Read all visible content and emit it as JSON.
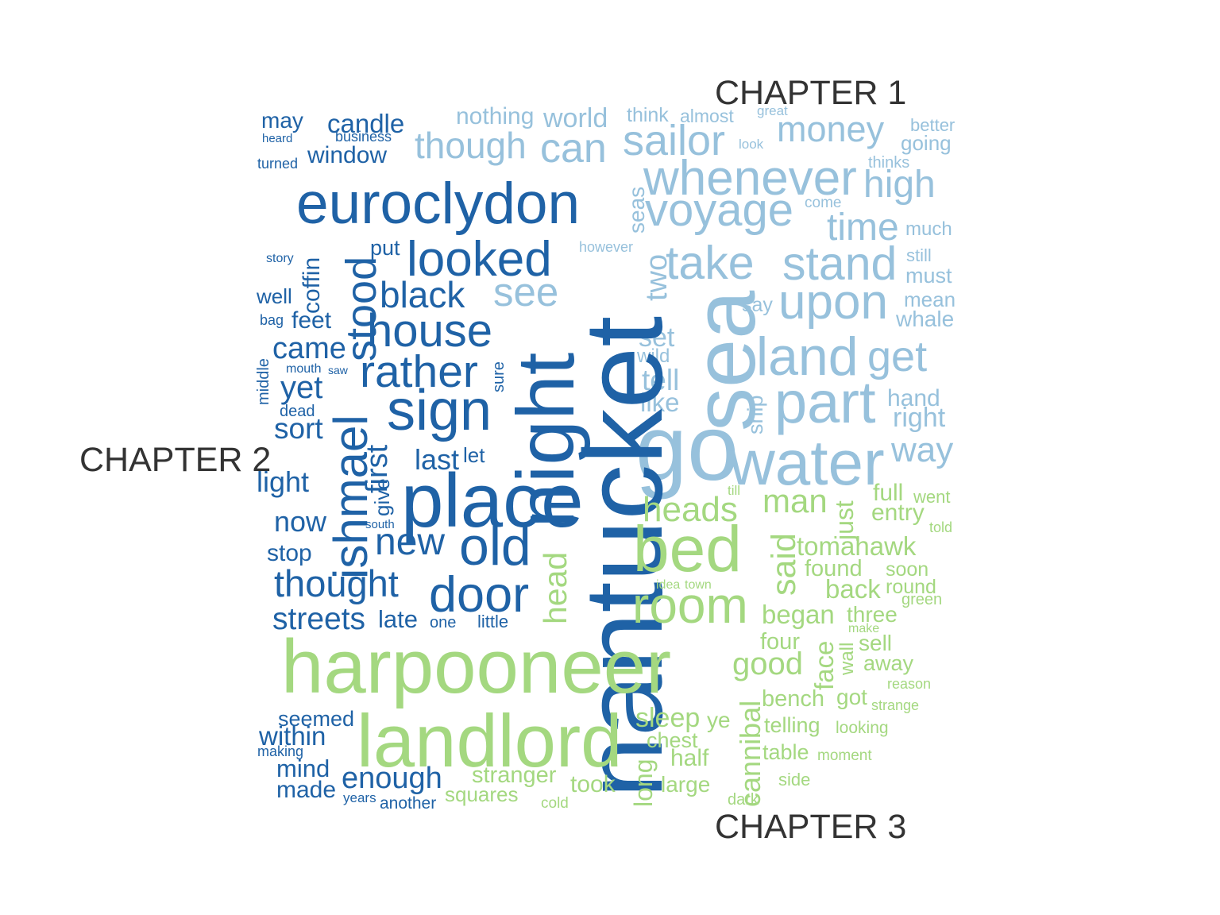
{
  "colors": {
    "chapter1": "#97c1dc",
    "chapter2": "#1f62a6",
    "chapter3": "#a4d880",
    "label": "#333333"
  },
  "chart_data": {
    "type": "wordcloud",
    "groups": [
      {
        "name": "CHAPTER 1",
        "color_key": "chapter1"
      },
      {
        "name": "CHAPTER 2",
        "color_key": "chapter2"
      },
      {
        "name": "CHAPTER 3",
        "color_key": "chapter3"
      }
    ],
    "words": [
      {
        "text": "nothing",
        "group": 0
      },
      {
        "text": "world",
        "group": 0
      },
      {
        "text": "think",
        "group": 0
      },
      {
        "text": "almost",
        "group": 0
      },
      {
        "text": "great",
        "group": 0
      },
      {
        "text": "though",
        "group": 0
      },
      {
        "text": "can",
        "group": 0
      },
      {
        "text": "sailor",
        "group": 0
      },
      {
        "text": "look",
        "group": 0
      },
      {
        "text": "money",
        "group": 0
      },
      {
        "text": "better",
        "group": 0
      },
      {
        "text": "going",
        "group": 0
      },
      {
        "text": "thinks",
        "group": 0
      },
      {
        "text": "whenever",
        "group": 0
      },
      {
        "text": "voyage",
        "group": 0
      },
      {
        "text": "high",
        "group": 0
      },
      {
        "text": "seas",
        "group": 0
      },
      {
        "text": "come",
        "group": 0
      },
      {
        "text": "time",
        "group": 0
      },
      {
        "text": "much",
        "group": 0
      },
      {
        "text": "however",
        "group": 0
      },
      {
        "text": "take",
        "group": 0
      },
      {
        "text": "stand",
        "group": 0
      },
      {
        "text": "still",
        "group": 0
      },
      {
        "text": "must",
        "group": 0
      },
      {
        "text": "two",
        "group": 0
      },
      {
        "text": "see",
        "group": 0
      },
      {
        "text": "sea",
        "group": 0
      },
      {
        "text": "say",
        "group": 0
      },
      {
        "text": "upon",
        "group": 0
      },
      {
        "text": "mean",
        "group": 0
      },
      {
        "text": "whale",
        "group": 0
      },
      {
        "text": "set",
        "group": 0
      },
      {
        "text": "wild",
        "group": 0
      },
      {
        "text": "land",
        "group": 0
      },
      {
        "text": "get",
        "group": 0
      },
      {
        "text": "tell",
        "group": 0
      },
      {
        "text": "like",
        "group": 0
      },
      {
        "text": "ship",
        "group": 0
      },
      {
        "text": "part",
        "group": 0
      },
      {
        "text": "hand",
        "group": 0
      },
      {
        "text": "right",
        "group": 0
      },
      {
        "text": "go",
        "group": 0
      },
      {
        "text": "water",
        "group": 0
      },
      {
        "text": "way",
        "group": 0
      },
      {
        "text": "may",
        "group": 1
      },
      {
        "text": "candle",
        "group": 1
      },
      {
        "text": "heard",
        "group": 1
      },
      {
        "text": "business",
        "group": 1
      },
      {
        "text": "window",
        "group": 1
      },
      {
        "text": "turned",
        "group": 1
      },
      {
        "text": "euroclydon",
        "group": 1
      },
      {
        "text": "coffin",
        "group": 1
      },
      {
        "text": "story",
        "group": 1
      },
      {
        "text": "put",
        "group": 1
      },
      {
        "text": "looked",
        "group": 1
      },
      {
        "text": "stood",
        "group": 1
      },
      {
        "text": "well",
        "group": 1
      },
      {
        "text": "black",
        "group": 1
      },
      {
        "text": "bag",
        "group": 1
      },
      {
        "text": "feet",
        "group": 1
      },
      {
        "text": "house",
        "group": 1
      },
      {
        "text": "came",
        "group": 1
      },
      {
        "text": "middle",
        "group": 1
      },
      {
        "text": "mouth",
        "group": 1
      },
      {
        "text": "saw",
        "group": 1
      },
      {
        "text": "rather",
        "group": 1
      },
      {
        "text": "sure",
        "group": 1
      },
      {
        "text": "yet",
        "group": 1
      },
      {
        "text": "night",
        "group": 1
      },
      {
        "text": "nantucket",
        "group": 1
      },
      {
        "text": "dead",
        "group": 1
      },
      {
        "text": "ishmael",
        "group": 1
      },
      {
        "text": "sign",
        "group": 1
      },
      {
        "text": "sort",
        "group": 1
      },
      {
        "text": "first",
        "group": 1
      },
      {
        "text": "last",
        "group": 1
      },
      {
        "text": "let",
        "group": 1
      },
      {
        "text": "light",
        "group": 1
      },
      {
        "text": "give",
        "group": 1
      },
      {
        "text": "place",
        "group": 1
      },
      {
        "text": "now",
        "group": 1
      },
      {
        "text": "south",
        "group": 1
      },
      {
        "text": "new",
        "group": 1
      },
      {
        "text": "old",
        "group": 1
      },
      {
        "text": "stop",
        "group": 1
      },
      {
        "text": "thought",
        "group": 1
      },
      {
        "text": "door",
        "group": 1
      },
      {
        "text": "streets",
        "group": 1
      },
      {
        "text": "late",
        "group": 1
      },
      {
        "text": "one",
        "group": 1
      },
      {
        "text": "little",
        "group": 1
      },
      {
        "text": "seemed",
        "group": 1
      },
      {
        "text": "within",
        "group": 1
      },
      {
        "text": "making",
        "group": 1
      },
      {
        "text": "mind",
        "group": 1
      },
      {
        "text": "enough",
        "group": 1
      },
      {
        "text": "made",
        "group": 1
      },
      {
        "text": "years",
        "group": 1
      },
      {
        "text": "another",
        "group": 1
      },
      {
        "text": "till",
        "group": 2
      },
      {
        "text": "full",
        "group": 2
      },
      {
        "text": "went",
        "group": 2
      },
      {
        "text": "heads",
        "group": 2
      },
      {
        "text": "man",
        "group": 2
      },
      {
        "text": "just",
        "group": 2
      },
      {
        "text": "entry",
        "group": 2
      },
      {
        "text": "told",
        "group": 2
      },
      {
        "text": "bed",
        "group": 2
      },
      {
        "text": "said",
        "group": 2
      },
      {
        "text": "tomahawk",
        "group": 2
      },
      {
        "text": "head",
        "group": 2
      },
      {
        "text": "found",
        "group": 2
      },
      {
        "text": "soon",
        "group": 2
      },
      {
        "text": "idea",
        "group": 2
      },
      {
        "text": "town",
        "group": 2
      },
      {
        "text": "back",
        "group": 2
      },
      {
        "text": "round",
        "group": 2
      },
      {
        "text": "green",
        "group": 2
      },
      {
        "text": "room",
        "group": 2
      },
      {
        "text": "began",
        "group": 2
      },
      {
        "text": "three",
        "group": 2
      },
      {
        "text": "make",
        "group": 2
      },
      {
        "text": "four",
        "group": 2
      },
      {
        "text": "wall",
        "group": 2
      },
      {
        "text": "sell",
        "group": 2
      },
      {
        "text": "harpooneer",
        "group": 2
      },
      {
        "text": "good",
        "group": 2
      },
      {
        "text": "face",
        "group": 2
      },
      {
        "text": "away",
        "group": 2
      },
      {
        "text": "reason",
        "group": 2
      },
      {
        "text": "bench",
        "group": 2
      },
      {
        "text": "got",
        "group": 2
      },
      {
        "text": "strange",
        "group": 2
      },
      {
        "text": "sleep",
        "group": 2
      },
      {
        "text": "ye",
        "group": 2
      },
      {
        "text": "cannibal",
        "group": 2
      },
      {
        "text": "telling",
        "group": 2
      },
      {
        "text": "looking",
        "group": 2
      },
      {
        "text": "landlord",
        "group": 2
      },
      {
        "text": "chest",
        "group": 2
      },
      {
        "text": "half",
        "group": 2
      },
      {
        "text": "table",
        "group": 2
      },
      {
        "text": "moment",
        "group": 2
      },
      {
        "text": "stranger",
        "group": 2
      },
      {
        "text": "took",
        "group": 2
      },
      {
        "text": "long",
        "group": 2
      },
      {
        "text": "large",
        "group": 2
      },
      {
        "text": "side",
        "group": 2
      },
      {
        "text": "squares",
        "group": 2
      },
      {
        "text": "dark",
        "group": 2
      },
      {
        "text": "cold",
        "group": 2
      }
    ]
  }
}
